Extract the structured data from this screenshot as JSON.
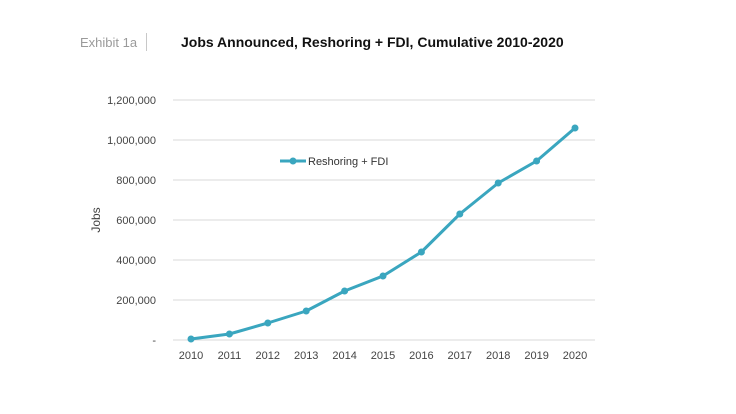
{
  "header": {
    "exhibit": "Exhibit 1a",
    "title": "Jobs Announced, Reshoring + FDI, Cumulative 2010-2020"
  },
  "colors": {
    "series": "#3aa6bf",
    "grid": "#d9d9d9",
    "text": "#444444"
  },
  "chart_data": {
    "type": "line",
    "title": "Jobs Announced, Reshoring + FDI, Cumulative 2010-2020",
    "xlabel": "",
    "ylabel": "Jobs",
    "categories": [
      "2010",
      "2011",
      "2012",
      "2013",
      "2014",
      "2015",
      "2016",
      "2017",
      "2018",
      "2019",
      "2020"
    ],
    "series": [
      {
        "name": "Reshoring + FDI",
        "values": [
          5000,
          30000,
          85000,
          145000,
          245000,
          320000,
          440000,
          630000,
          785000,
          895000,
          1060000
        ]
      }
    ],
    "ylim": [
      0,
      1200000
    ],
    "yticks": [
      0,
      200000,
      400000,
      600000,
      800000,
      1000000,
      1200000
    ],
    "ytick_labels": [
      "-",
      "200,000",
      "400,000",
      "600,000",
      "800,000",
      "1,000,000",
      "1,200,000"
    ],
    "grid": true,
    "legend_position": "inside-top-left"
  }
}
